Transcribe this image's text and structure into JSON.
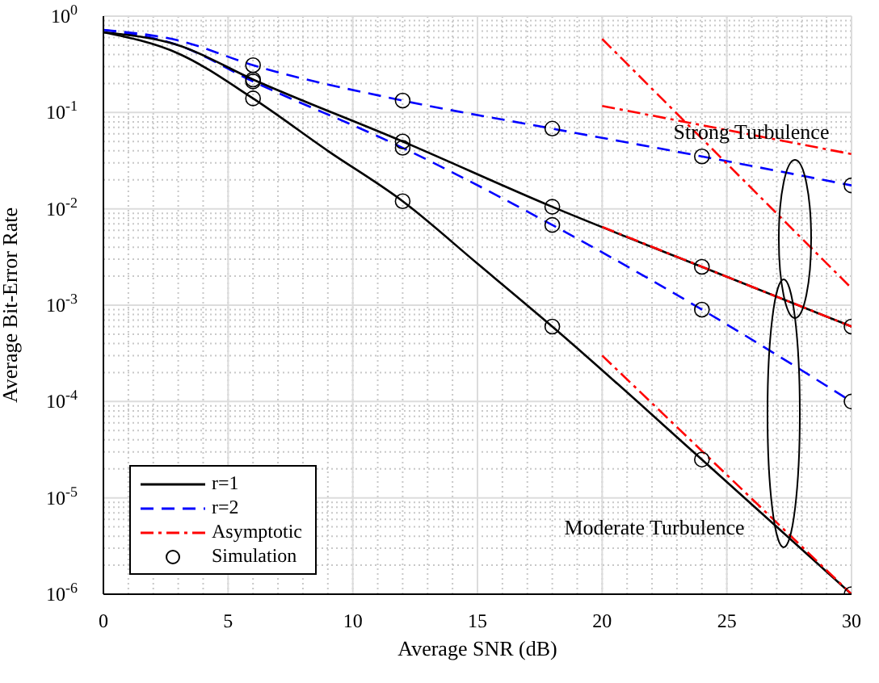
{
  "chart_data": {
    "type": "line",
    "xlabel": "Average SNR (dB)",
    "ylabel": "Average Bit-Error Rate",
    "xlim": [
      0,
      30
    ],
    "xticks": [
      0,
      5,
      10,
      15,
      20,
      25,
      30
    ],
    "ylim": [
      1e-06,
      1
    ],
    "yticks": [
      {
        "value": 1e-06,
        "label": "10$^{-6}$"
      },
      {
        "value": 1e-05,
        "label": "10$^{-5}$"
      },
      {
        "value": 0.0001,
        "label": "10$^{-4}$"
      },
      {
        "value": 0.001,
        "label": "10$^{-3}$"
      },
      {
        "value": 0.01,
        "label": "10$^{-2}$"
      },
      {
        "value": 0.1,
        "label": "10$^{-1}$"
      },
      {
        "value": 1,
        "label": "10$^{0}$"
      }
    ],
    "log": "y",
    "grid": true,
    "legend": "bottom left",
    "marker": "none",
    "annotations": [
      "Strong Turbulence",
      "Moderate Turbulence"
    ],
    "series": [
      {
        "name": "r=1",
        "color": "#000000",
        "line_style": "solid",
        "x": [
          0,
          3,
          6,
          9,
          12,
          15,
          18,
          24,
          30
        ],
        "values": [
          0.68,
          0.41,
          0.14,
          0.04,
          0.012,
          0.0027,
          0.0006,
          2.5e-05,
          1e-06
        ]
      },
      {
        "name": "r=2",
        "color": "#0000ff",
        "line_style": "dashed",
        "x": [
          0,
          3,
          6,
          12,
          18,
          24,
          30
        ],
        "values": [
          0.72,
          0.5,
          0.21,
          0.043,
          0.0068,
          0.0009,
          0.0001
        ]
      },
      {
        "color": "#000000",
        "line_style": "solid",
        "x": [
          0,
          3,
          6,
          12,
          18,
          24,
          30
        ],
        "values": [
          0.68,
          0.5,
          0.22,
          0.05,
          0.0105,
          0.0025,
          0.0006
        ]
      },
      {
        "color": "#0000ff",
        "line_style": "dashed",
        "x": [
          0,
          3,
          6,
          12,
          18,
          24,
          30
        ],
        "values": [
          0.72,
          0.56,
          0.31,
          0.133,
          0.068,
          0.035,
          0.0175
        ]
      },
      {
        "name": "Asymptotic",
        "color": "#ff0000",
        "line_style": "dashdot",
        "x": [
          20,
          30
        ],
        "values": [
          0.0065,
          0.0006
        ]
      },
      {
        "color": "#ff0000",
        "line_style": "dashdot",
        "x": [
          20,
          30
        ],
        "values": [
          0.117,
          0.037
        ]
      },
      {
        "color": "#ff0000",
        "line_style": "dashdot",
        "x": [
          20,
          30
        ],
        "values": [
          0.58,
          0.0015
        ]
      },
      {
        "color": "#ff0000",
        "line_style": "dashdot",
        "x": [
          20,
          30
        ],
        "values": [
          0.0003,
          1e-06
        ]
      },
      {
        "name": "Simulation",
        "type": "scatter",
        "marker": "circle",
        "color": "#000000",
        "x": [
          6,
          12,
          18,
          24,
          30,
          6,
          12,
          18,
          24,
          30,
          6,
          12,
          18,
          24,
          30,
          6,
          12,
          18,
          24,
          30
        ],
        "values": [
          0.14,
          0.012,
          0.0006,
          2.5e-05,
          1e-06,
          0.21,
          0.043,
          0.0068,
          0.0009,
          0.0001,
          0.22,
          0.05,
          0.0105,
          0.0025,
          0.0006,
          0.31,
          0.133,
          0.068,
          0.035,
          0.0175
        ]
      }
    ]
  }
}
